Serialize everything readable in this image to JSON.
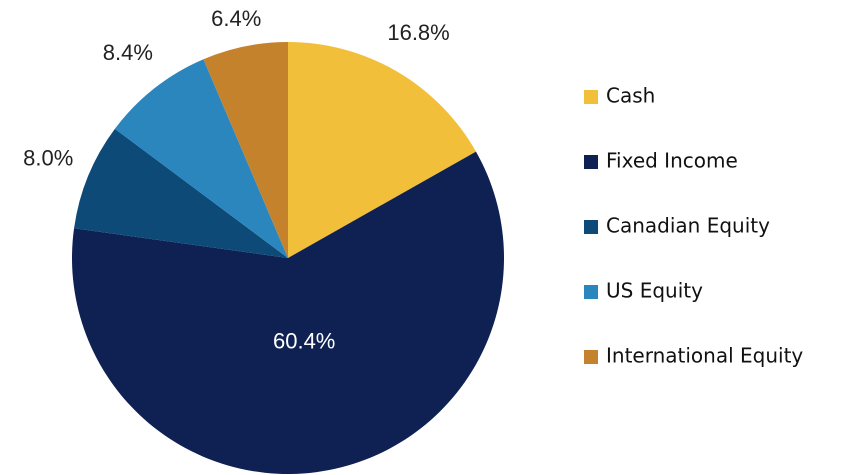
{
  "chart_data": {
    "type": "pie",
    "categories": [
      "Cash",
      "Fixed Income",
      "Canadian Equity",
      "US Equity",
      "International Equity"
    ],
    "values": [
      16.8,
      60.4,
      8.0,
      8.4,
      6.4
    ],
    "value_labels": [
      "16.8%",
      "60.4%",
      "8.0%",
      "8.4%",
      "6.4%"
    ],
    "colors": [
      "#f2bf3a",
      "#0f2152",
      "#0d4a78",
      "#2a86bd",
      "#c4822d"
    ],
    "legend": "right"
  }
}
